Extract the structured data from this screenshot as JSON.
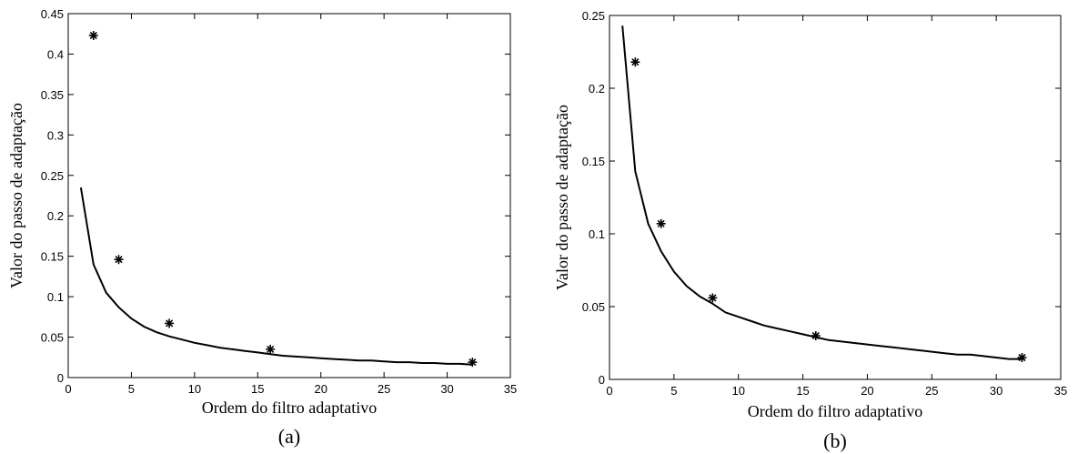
{
  "chart_data": [
    {
      "type": "line",
      "caption": "(a)",
      "xlabel": "Ordem do filtro adaptativo",
      "ylabel": "Valor do passo de adaptação",
      "xlim": [
        0,
        35
      ],
      "ylim": [
        0,
        0.45
      ],
      "xticks": [
        0,
        5,
        10,
        15,
        20,
        25,
        30,
        35
      ],
      "yticks": [
        0,
        0.05,
        0.1,
        0.15,
        0.2,
        0.25,
        0.3,
        0.35,
        0.4,
        0.45
      ],
      "xtick_labels": [
        "0",
        "5",
        "10",
        "15",
        "20",
        "25",
        "30",
        "35"
      ],
      "ytick_labels": [
        "0",
        "0.05",
        "0.1",
        "0.15",
        "0.2",
        "0.25",
        "0.3",
        "0.35",
        "0.4",
        "0.45"
      ],
      "grid": false,
      "series": [
        {
          "style": "line",
          "x": [
            1,
            2,
            3,
            4,
            5,
            6,
            7,
            8,
            9,
            10,
            11,
            12,
            13,
            14,
            15,
            16,
            17,
            18,
            19,
            20,
            21,
            22,
            23,
            24,
            25,
            26,
            27,
            28,
            29,
            30,
            31,
            32
          ],
          "y": [
            0.235,
            0.14,
            0.105,
            0.087,
            0.073,
            0.063,
            0.056,
            0.051,
            0.047,
            0.043,
            0.04,
            0.037,
            0.035,
            0.033,
            0.031,
            0.029,
            0.027,
            0.026,
            0.025,
            0.024,
            0.023,
            0.022,
            0.021,
            0.021,
            0.02,
            0.019,
            0.019,
            0.018,
            0.018,
            0.017,
            0.017,
            0.016
          ]
        },
        {
          "style": "markers",
          "marker": "asterisk",
          "x": [
            2,
            4,
            8,
            16,
            32
          ],
          "y": [
            0.423,
            0.146,
            0.067,
            0.035,
            0.019
          ]
        }
      ]
    },
    {
      "type": "line",
      "caption": "(b)",
      "xlabel": "Ordem do filtro adaptativo",
      "ylabel": "Valor do passo de adaptação",
      "xlim": [
        0,
        35
      ],
      "ylim": [
        0,
        0.25
      ],
      "xticks": [
        0,
        5,
        10,
        15,
        20,
        25,
        30,
        35
      ],
      "yticks": [
        0,
        0.05,
        0.1,
        0.15,
        0.2,
        0.25
      ],
      "xtick_labels": [
        "0",
        "5",
        "10",
        "15",
        "20",
        "25",
        "30",
        "35"
      ],
      "ytick_labels": [
        "0",
        "0.05",
        "0.1",
        "0.15",
        "0.2",
        "0.25"
      ],
      "grid": false,
      "series": [
        {
          "style": "line",
          "x": [
            1,
            2,
            3,
            4,
            5,
            6,
            7,
            8,
            9,
            10,
            11,
            12,
            13,
            14,
            15,
            16,
            17,
            18,
            19,
            20,
            21,
            22,
            23,
            24,
            25,
            26,
            27,
            28,
            29,
            30,
            31,
            32
          ],
          "y": [
            0.243,
            0.143,
            0.107,
            0.088,
            0.074,
            0.064,
            0.057,
            0.052,
            0.046,
            0.043,
            0.04,
            0.037,
            0.035,
            0.033,
            0.031,
            0.029,
            0.027,
            0.026,
            0.025,
            0.024,
            0.023,
            0.022,
            0.021,
            0.02,
            0.019,
            0.018,
            0.017,
            0.017,
            0.016,
            0.015,
            0.014,
            0.014
          ]
        },
        {
          "style": "markers",
          "marker": "asterisk",
          "x": [
            2,
            4,
            8,
            16,
            32
          ],
          "y": [
            0.218,
            0.107,
            0.056,
            0.03,
            0.015
          ]
        }
      ]
    }
  ]
}
